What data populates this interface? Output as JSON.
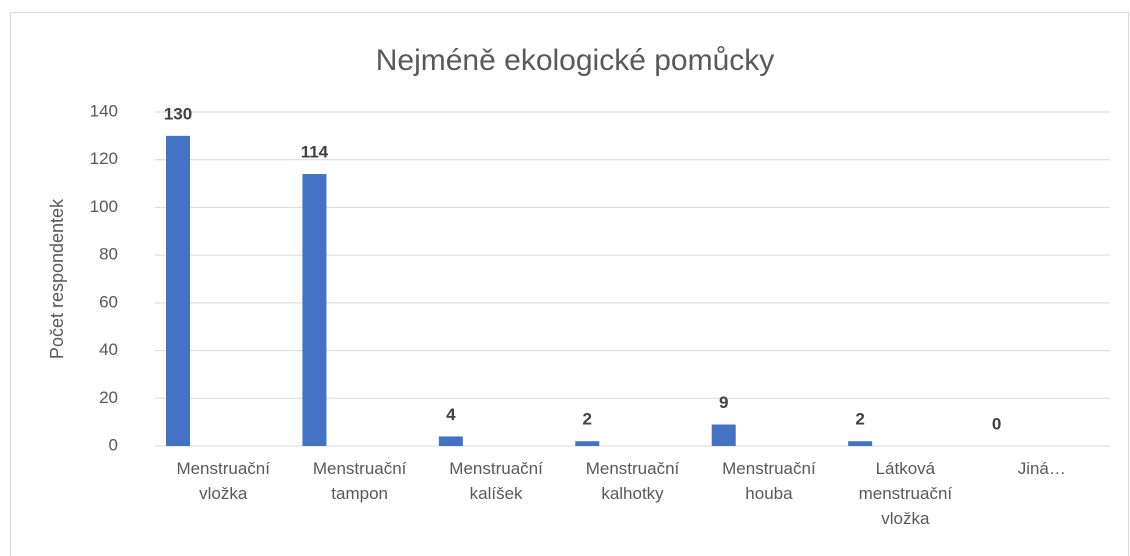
{
  "chart_data": {
    "type": "bar",
    "title": "Nejméně ekologické pomůcky",
    "y_label": "Počet respondentek",
    "categories": [
      "Menstruační vložka",
      "Menstruační tampon",
      "Menstruační kalíšek",
      "Menstruační kalhotky",
      "Menstruační houba",
      "Látková menstruační vložka",
      "Jiná…"
    ],
    "values": [
      130,
      114,
      4,
      2,
      9,
      2,
      0
    ],
    "color": "#4472c4",
    "ylim": [
      0,
      140
    ],
    "yticks": [
      0,
      20,
      40,
      60,
      80,
      100,
      120,
      140
    ],
    "grid": true
  }
}
